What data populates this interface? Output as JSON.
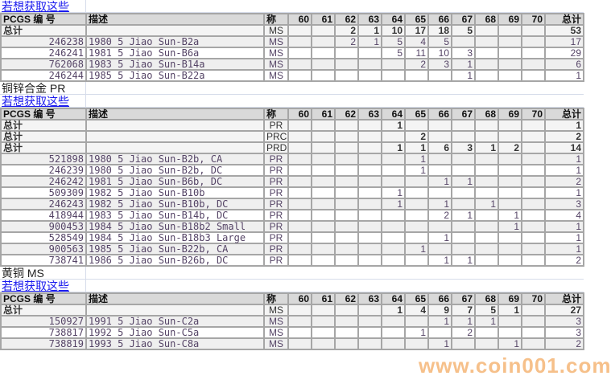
{
  "columns": {
    "code": "PCGS 编 号",
    "desc": "描述",
    "grade": "称",
    "grades": [
      "60",
      "61",
      "62",
      "63",
      "64",
      "65",
      "66",
      "67",
      "68",
      "69",
      "70"
    ],
    "total": "总计"
  },
  "link_label": "若想获取这些",
  "sections": [
    {
      "title": "",
      "totals": [
        {
          "label": "总计",
          "grade": "MS",
          "values": [
            "",
            "",
            "2",
            "1",
            "10",
            "17",
            "18",
            "5",
            "",
            "",
            ""
          ],
          "total": "53"
        }
      ],
      "rows": [
        {
          "code": "246238",
          "desc": "1980 5 Jiao Sun-B2a",
          "grade": "MS",
          "values": [
            "",
            "",
            "2",
            "1",
            "5",
            "4",
            "5",
            "",
            "",
            "",
            ""
          ],
          "total": "17"
        },
        {
          "code": "246241",
          "desc": "1981 5 Jiao Sun-B6a",
          "grade": "MS",
          "values": [
            "",
            "",
            "",
            "",
            "5",
            "11",
            "10",
            "3",
            "",
            "",
            ""
          ],
          "total": "29"
        },
        {
          "code": "762068",
          "desc": "1983 5 Jiao Sun-B14a",
          "grade": "MS",
          "values": [
            "",
            "",
            "",
            "",
            "",
            "2",
            "3",
            "1",
            "",
            "",
            ""
          ],
          "total": "6"
        },
        {
          "code": "246244",
          "desc": "1985 5 Jiao Sun-B22a",
          "grade": "MS",
          "values": [
            "",
            "",
            "",
            "",
            "",
            "",
            "",
            "1",
            "",
            "",
            ""
          ],
          "total": "1"
        }
      ]
    },
    {
      "title": "铜锌合金  PR",
      "totals": [
        {
          "label": "总计",
          "grade": "PR",
          "values": [
            "",
            "",
            "",
            "",
            "1",
            "",
            "",
            "",
            "",
            "",
            ""
          ],
          "total": "1"
        },
        {
          "label": "总计",
          "grade": "PRC",
          "values": [
            "",
            "",
            "",
            "",
            "",
            "2",
            "",
            "",
            "",
            "",
            ""
          ],
          "total": "2"
        },
        {
          "label": "总计",
          "grade": "PRD",
          "values": [
            "",
            "",
            "",
            "",
            "1",
            "1",
            "6",
            "3",
            "1",
            "2",
            ""
          ],
          "total": "14"
        }
      ],
      "rows": [
        {
          "code": "521898",
          "desc": "1980 5 Jiao Sun-B2b, CA",
          "grade": "PR",
          "values": [
            "",
            "",
            "",
            "",
            "",
            "1",
            "",
            "",
            "",
            "",
            ""
          ],
          "total": "1"
        },
        {
          "code": "246239",
          "desc": "1980 5 Jiao Sun-B2b, DC",
          "grade": "PR",
          "values": [
            "",
            "",
            "",
            "",
            "",
            "1",
            "",
            "",
            "",
            "",
            ""
          ],
          "total": "1"
        },
        {
          "code": "246242",
          "desc": "1981 5 Jiao Sun-B6b, DC",
          "grade": "PR",
          "values": [
            "",
            "",
            "",
            "",
            "",
            "",
            "1",
            "1",
            "",
            "",
            ""
          ],
          "total": "2"
        },
        {
          "code": "509309",
          "desc": "1982 5 Jiao Sun-B10b",
          "grade": "PR",
          "values": [
            "",
            "",
            "",
            "",
            "1",
            "",
            "",
            "",
            "",
            "",
            ""
          ],
          "total": "1"
        },
        {
          "code": "246243",
          "desc": "1982 5 Jiao Sun-B10b, DC",
          "grade": "PR",
          "values": [
            "",
            "",
            "",
            "",
            "1",
            "",
            "1",
            "",
            "1",
            "",
            ""
          ],
          "total": "3"
        },
        {
          "code": "418944",
          "desc": "1983 5 Jiao Sun-B14b, DC",
          "grade": "PR",
          "values": [
            "",
            "",
            "",
            "",
            "",
            "",
            "2",
            "1",
            "",
            "1",
            ""
          ],
          "total": "4"
        },
        {
          "code": "900453",
          "desc": "1984 5 Jiao Sun-B18b2 Small",
          "grade": "PR",
          "values": [
            "",
            "",
            "",
            "",
            "",
            "",
            "",
            "",
            "",
            "1",
            ""
          ],
          "total": "1"
        },
        {
          "code": "528549",
          "desc": "1984 5 Jiao Sun-B18b3 Large",
          "grade": "PR",
          "values": [
            "",
            "",
            "",
            "",
            "",
            "",
            "1",
            "",
            "",
            "",
            ""
          ],
          "total": "1"
        },
        {
          "code": "900563",
          "desc": "1985 5 Jiao Sun-B22b, CA",
          "grade": "PR",
          "values": [
            "",
            "",
            "",
            "",
            "",
            "1",
            "",
            "",
            "",
            "",
            ""
          ],
          "total": "1"
        },
        {
          "code": "738741",
          "desc": "1986 5 Jiao Sun-B26b, DC",
          "grade": "PR",
          "values": [
            "",
            "",
            "",
            "",
            "",
            "",
            "1",
            "1",
            "",
            "",
            ""
          ],
          "total": "2"
        }
      ]
    },
    {
      "title": "黄铜  MS",
      "totals": [
        {
          "label": "总计",
          "grade": "MS",
          "values": [
            "",
            "",
            "",
            "",
            "1",
            "4",
            "9",
            "7",
            "5",
            "1",
            ""
          ],
          "total": "27"
        }
      ],
      "rows": [
        {
          "code": "150927",
          "desc": "1991 5 Jiao Sun-C2a",
          "grade": "MS",
          "values": [
            "",
            "",
            "",
            "",
            "",
            "",
            "1",
            "1",
            "1",
            "",
            ""
          ],
          "total": "3"
        },
        {
          "code": "738817",
          "desc": "1992 5 Jiao Sun-C5a",
          "grade": "MS",
          "values": [
            "",
            "",
            "",
            "",
            "",
            "1",
            "",
            "2",
            "",
            "",
            ""
          ],
          "total": "3"
        },
        {
          "code": "738819",
          "desc": "1993 5 Jiao Sun-C8a",
          "grade": "MS",
          "values": [
            "",
            "",
            "",
            "",
            "",
            "",
            "1",
            "",
            "",
            "1",
            ""
          ],
          "total": "2"
        }
      ]
    }
  ],
  "watermark": "www.coin001.com"
}
